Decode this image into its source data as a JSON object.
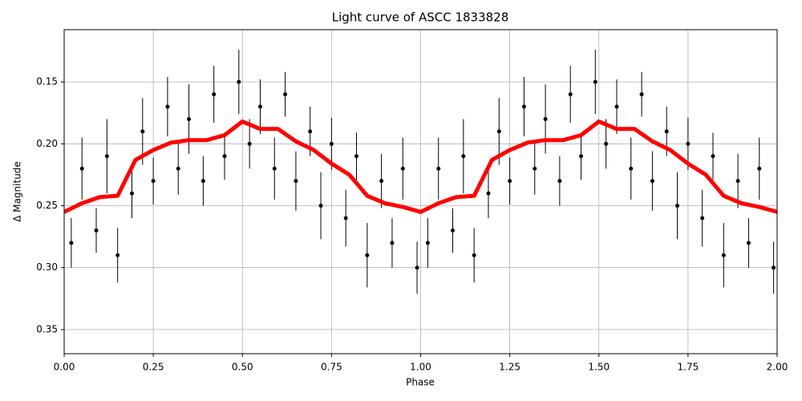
{
  "chart_data": {
    "type": "scatter",
    "title": "Light curve of ASCC 1833828",
    "xlabel": "Phase",
    "ylabel": "Δ Magnitude",
    "xlim": [
      0,
      2
    ],
    "ylim": [
      0.3695,
      0.1078
    ],
    "y_inverted": true,
    "grid": true,
    "xticks": [
      {
        "value": 0,
        "label": "0.00"
      },
      0.25,
      {
        "value": 0.5,
        "label": "0.50"
      },
      0.75,
      {
        "value": 1,
        "label": "1.00"
      },
      1.25,
      {
        "value": 1.5,
        "label": "1.50"
      },
      1.75,
      {
        "value": 2,
        "label": "2.00"
      }
    ],
    "yticks": [
      0.15,
      {
        "value": 0.2,
        "label": "0.20"
      },
      0.25,
      {
        "value": 0.3,
        "label": "0.30"
      },
      0.35
    ],
    "series": [
      {
        "style": "errorbar",
        "color": "#000000",
        "x": [
          0.02,
          0.05,
          0.09,
          0.12,
          0.15,
          0.19,
          0.22,
          0.25,
          0.29,
          0.32,
          0.35,
          0.39,
          0.42,
          0.45,
          0.49,
          0.52,
          0.55,
          0.59,
          0.62,
          0.65,
          0.69,
          0.72,
          0.75,
          0.79,
          0.82,
          0.85,
          0.89,
          0.92,
          0.95,
          0.99,
          1.02,
          1.05,
          1.09,
          1.12,
          1.15,
          1.19,
          1.22,
          1.25,
          1.29,
          1.32,
          1.35,
          1.39,
          1.42,
          1.45,
          1.49,
          1.52,
          1.55,
          1.59,
          1.62,
          1.65,
          1.69,
          1.72,
          1.75,
          1.79,
          1.82,
          1.85,
          1.89,
          1.92,
          1.95,
          1.99
        ],
        "values": [
          0.28,
          0.22,
          0.27,
          0.21,
          0.29,
          0.24,
          0.19,
          0.23,
          0.17,
          0.22,
          0.18,
          0.23,
          0.16,
          0.21,
          0.15,
          0.2,
          0.17,
          0.22,
          0.16,
          0.23,
          0.19,
          0.25,
          0.2,
          0.26,
          0.21,
          0.29,
          0.23,
          0.28,
          0.22,
          0.3,
          0.28,
          0.22,
          0.27,
          0.21,
          0.29,
          0.24,
          0.19,
          0.23,
          0.17,
          0.22,
          0.18,
          0.23,
          0.16,
          0.21,
          0.15,
          0.2,
          0.17,
          0.22,
          0.16,
          0.23,
          0.19,
          0.25,
          0.2,
          0.26,
          0.21,
          0.29,
          0.23,
          0.28,
          0.22,
          0.3
        ],
        "errors": [
          0.02,
          0.025,
          0.018,
          0.03,
          0.022,
          0.02,
          0.027,
          0.019,
          0.024,
          0.021,
          0.028,
          0.02,
          0.023,
          0.019,
          0.026,
          0.02,
          0.022,
          0.025,
          0.018,
          0.024,
          0.02,
          0.027,
          0.021,
          0.023,
          0.019,
          0.026,
          0.022,
          0.02,
          0.025,
          0.021,
          0.02,
          0.025,
          0.018,
          0.03,
          0.022,
          0.02,
          0.027,
          0.019,
          0.024,
          0.021,
          0.028,
          0.02,
          0.023,
          0.019,
          0.026,
          0.02,
          0.022,
          0.025,
          0.018,
          0.024,
          0.02,
          0.027,
          0.021,
          0.023,
          0.019,
          0.026,
          0.022,
          0.02,
          0.025,
          0.021
        ]
      },
      {
        "style": "line",
        "color": "#ff0000",
        "x": [
          0,
          0.05,
          0.1,
          0.15,
          0.2,
          0.25,
          0.3,
          0.35,
          0.4,
          0.45,
          0.5,
          0.55,
          0.6,
          0.65,
          0.7,
          0.75,
          0.8,
          0.85,
          0.9,
          0.95,
          1,
          1.05,
          1.1,
          1.15,
          1.2,
          1.25,
          1.3,
          1.35,
          1.4,
          1.45,
          1.5,
          1.55,
          1.6,
          1.65,
          1.7,
          1.75,
          1.8,
          1.85,
          1.9,
          1.95,
          2
        ],
        "values": [
          0.255,
          0.248,
          0.243,
          0.242,
          0.213,
          0.205,
          0.199,
          0.197,
          0.197,
          0.193,
          0.182,
          0.188,
          0.188,
          0.198,
          0.205,
          0.216,
          0.225,
          0.242,
          0.248,
          0.251,
          0.255,
          0.248,
          0.243,
          0.242,
          0.213,
          0.205,
          0.199,
          0.197,
          0.197,
          0.193,
          0.182,
          0.188,
          0.188,
          0.198,
          0.205,
          0.216,
          0.225,
          0.242,
          0.248,
          0.251,
          0.255
        ]
      }
    ]
  }
}
